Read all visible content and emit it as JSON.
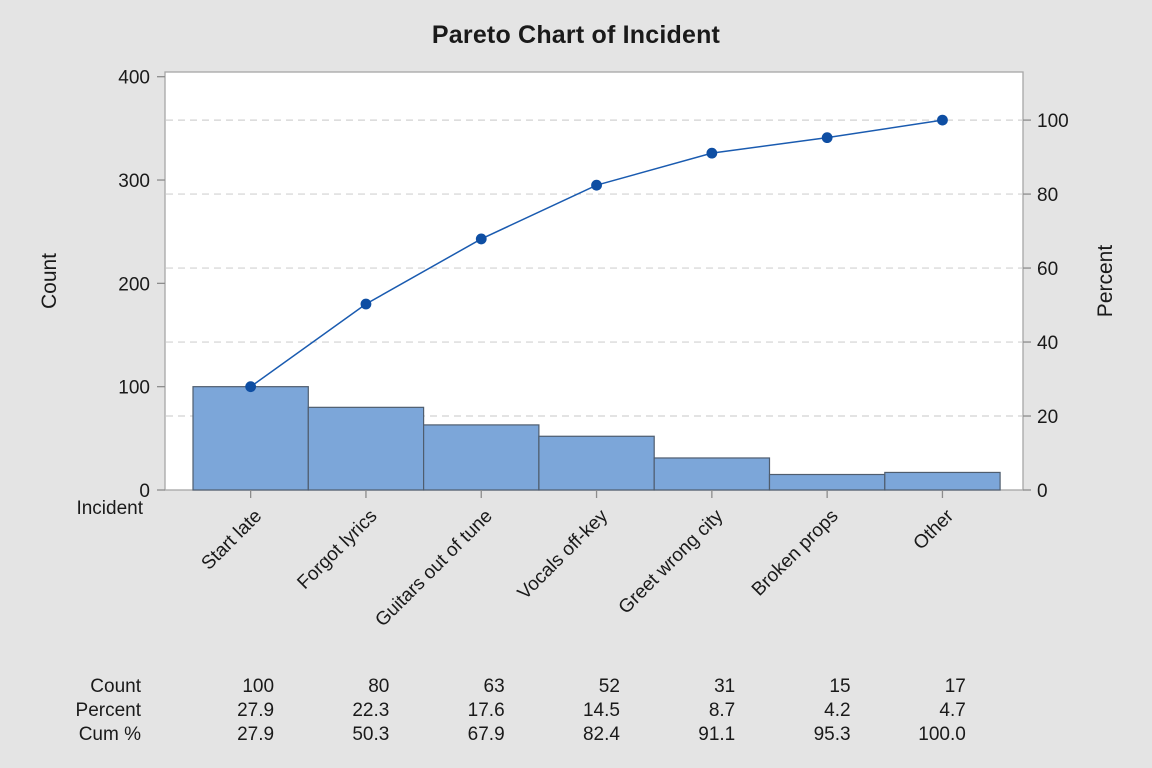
{
  "chart_data": {
    "type": "bar",
    "subtype": "pareto",
    "title": "Pareto Chart of Incident",
    "xlabel": "Incident",
    "ylabel_left": "Count",
    "ylabel_right": "Percent",
    "categories": [
      "Start late",
      "Forgot lyrics",
      "Guitars out of tune",
      "Vocals off-key",
      "Greet wrong city",
      "Broken props",
      "Other"
    ],
    "counts": [
      100,
      80,
      63,
      52,
      31,
      15,
      17
    ],
    "percents": [
      27.9,
      22.3,
      17.6,
      14.5,
      8.7,
      4.2,
      4.7
    ],
    "cum_percents": [
      27.9,
      50.3,
      67.9,
      82.4,
      91.1,
      95.3,
      100.0
    ],
    "cum_counts": [
      100,
      180,
      243,
      295,
      326,
      341,
      358
    ],
    "total_count": 358,
    "count_axis": {
      "min": 0,
      "max": 400,
      "ticks": [
        0,
        100,
        200,
        300,
        400
      ]
    },
    "percent_axis": {
      "min": 0,
      "max": 100,
      "ticks": [
        0,
        20,
        40,
        60,
        80,
        100
      ]
    },
    "grid": "horizontal dashed lines at percent ticks",
    "legend": "none",
    "colors": {
      "page_bg": "#E4E4E4",
      "plot_bg": "#FFFFFF",
      "axis": "#A6A6A6",
      "tick": "#8C8C8C",
      "grid": "#D2D2D2",
      "bar_fill": "#7CA6D9",
      "bar_stroke": "#4F5D6E",
      "line": "#1A5BB0",
      "marker": "#0E4EA3",
      "text": "#1A1A1A"
    }
  },
  "stats_table": {
    "rows": [
      {
        "label": "Count",
        "values": [
          "100",
          "80",
          "63",
          "52",
          "31",
          "15",
          "17"
        ]
      },
      {
        "label": "Percent",
        "values": [
          "27.9",
          "22.3",
          "17.6",
          "14.5",
          "8.7",
          "4.2",
          "4.7"
        ]
      },
      {
        "label": "Cum %",
        "values": [
          "27.9",
          "50.3",
          "67.9",
          "82.4",
          "91.1",
          "95.3",
          "100.0"
        ]
      }
    ]
  }
}
